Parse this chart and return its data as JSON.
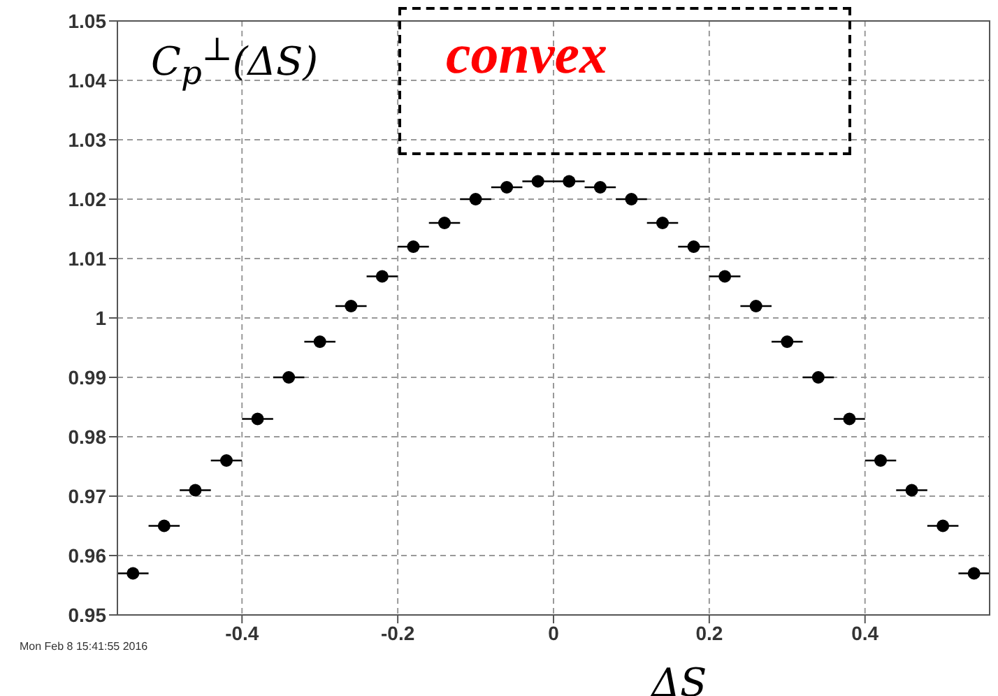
{
  "chart_data": {
    "type": "scatter",
    "ylabel": "C$_{p}$$^{⊥}$(ΔS)",
    "xlabel": "ΔS",
    "annotations": [
      "convex",
      "Mon Feb 8 15:41:55 2016"
    ],
    "x": [
      -0.54,
      -0.5,
      -0.46,
      -0.42,
      -0.38,
      -0.34,
      -0.3,
      -0.26,
      -0.22,
      -0.18,
      -0.14,
      -0.1,
      -0.06,
      -0.02,
      0.02,
      0.06,
      0.1,
      0.14,
      0.18,
      0.22,
      0.26,
      0.3,
      0.34,
      0.38,
      0.42,
      0.46,
      0.5,
      0.54
    ],
    "series": [
      {
        "color": "#000000",
        "values": [
          0.957,
          0.965,
          0.971,
          0.976,
          0.983,
          0.99,
          0.996,
          1.002,
          1.007,
          1.012,
          1.016,
          1.02,
          1.022,
          1.023,
          1.023,
          1.022,
          1.02,
          1.016,
          1.012,
          1.007,
          1.002,
          0.996,
          0.99,
          0.983,
          0.976,
          0.971,
          0.965,
          0.957
        ],
        "xerrors": [
          0.02,
          0.02,
          0.02,
          0.02,
          0.02,
          0.02,
          0.02,
          0.02,
          0.02,
          0.02,
          0.02,
          0.02,
          0.02,
          0.02,
          0.02,
          0.02,
          0.02,
          0.02,
          0.02,
          0.02,
          0.02,
          0.02,
          0.02,
          0.02,
          0.02,
          0.02,
          0.02,
          0.02
        ]
      }
    ],
    "xlim": [
      -0.56,
      0.56
    ],
    "xticks": [
      -0.4,
      -0.2,
      0,
      0.2,
      0.4
    ],
    "ylim": [
      0.95,
      1.05
    ],
    "yticks": [
      0.95,
      0.96,
      0.97,
      0.98,
      0.99,
      1,
      1.01,
      1.02,
      1.03,
      1.04,
      1.05
    ],
    "grid": true,
    "marker": "circle"
  }
}
